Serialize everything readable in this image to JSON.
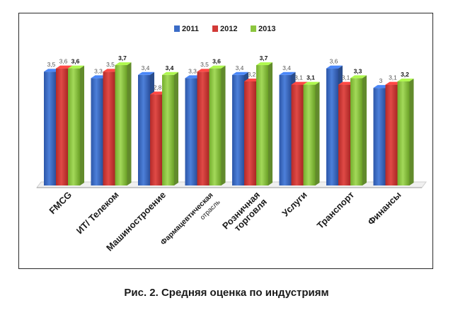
{
  "caption": "Рис. 2. Средняя оценка по индустриям",
  "chart_data": {
    "type": "bar",
    "categories": [
      "FMCG",
      "ИТ/ Телеком",
      "Машиностроение",
      "Фармацевтическая отрасль",
      "Розничная торговля",
      "Услуги",
      "Транспорт",
      "Финансы"
    ],
    "category_label_lines": [
      [
        "FMCG"
      ],
      [
        "ИТ/ Телеком"
      ],
      [
        "Машиностроение"
      ],
      [
        "Фармацевтическая",
        "отрасль"
      ],
      [
        "Розничная",
        "торговля"
      ],
      [
        "Услуги"
      ],
      [
        "Транспорт"
      ],
      [
        "Финансы"
      ]
    ],
    "series": [
      {
        "name": "2011",
        "color": "#3b6cc7",
        "values": [
          3.5,
          3.3,
          3.4,
          3.3,
          3.4,
          3.4,
          3.6,
          3.0
        ],
        "labels": [
          "3,5",
          "3,3",
          "3,4",
          "3,3",
          "3,4",
          "3,4",
          "3,6",
          "3"
        ]
      },
      {
        "name": "2012",
        "color": "#d23a37",
        "values": [
          3.6,
          3.5,
          2.8,
          3.5,
          3.2,
          3.1,
          3.1,
          3.1
        ],
        "labels": [
          "3,6",
          "3,5",
          "2,8",
          "3,5",
          "3,2",
          "3,1",
          "3,1",
          "3,1"
        ]
      },
      {
        "name": "2013",
        "color": "#8cc63f",
        "values": [
          3.6,
          3.7,
          3.4,
          3.6,
          3.7,
          3.1,
          3.3,
          3.2
        ],
        "labels": [
          "3,6",
          "3,7",
          "3,4",
          "3,6",
          "3,7",
          "3,1",
          "3,3",
          "3,2"
        ]
      }
    ],
    "ylim": [
      0,
      3.7
    ],
    "grid": false,
    "legend_position": "top-center",
    "title": "",
    "xlabel": "",
    "ylabel": ""
  }
}
